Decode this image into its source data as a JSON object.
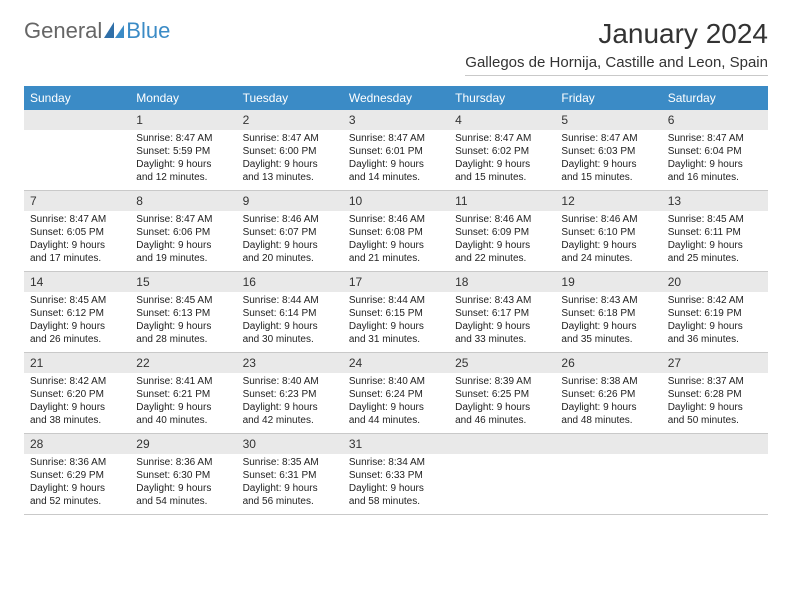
{
  "brand": {
    "part1": "General",
    "part2": "Blue"
  },
  "title": "January 2024",
  "location": "Gallegos de Hornija, Castille and Leon, Spain",
  "colors": {
    "header_bg": "#3b8bc6",
    "header_fg": "#ffffff",
    "daynum_bg": "#e9e9e9",
    "border": "#c9c9c9",
    "brand_gray": "#666666",
    "brand_blue": "#3b8bc6"
  },
  "layout": {
    "columns": 7,
    "rows": 5,
    "first_weekday_offset": 1
  },
  "weekdays": [
    "Sunday",
    "Monday",
    "Tuesday",
    "Wednesday",
    "Thursday",
    "Friday",
    "Saturday"
  ],
  "days": [
    {
      "n": 1,
      "sunrise": "8:47 AM",
      "sunset": "5:59 PM",
      "daylight": "9 hours and 12 minutes."
    },
    {
      "n": 2,
      "sunrise": "8:47 AM",
      "sunset": "6:00 PM",
      "daylight": "9 hours and 13 minutes."
    },
    {
      "n": 3,
      "sunrise": "8:47 AM",
      "sunset": "6:01 PM",
      "daylight": "9 hours and 14 minutes."
    },
    {
      "n": 4,
      "sunrise": "8:47 AM",
      "sunset": "6:02 PM",
      "daylight": "9 hours and 15 minutes."
    },
    {
      "n": 5,
      "sunrise": "8:47 AM",
      "sunset": "6:03 PM",
      "daylight": "9 hours and 15 minutes."
    },
    {
      "n": 6,
      "sunrise": "8:47 AM",
      "sunset": "6:04 PM",
      "daylight": "9 hours and 16 minutes."
    },
    {
      "n": 7,
      "sunrise": "8:47 AM",
      "sunset": "6:05 PM",
      "daylight": "9 hours and 17 minutes."
    },
    {
      "n": 8,
      "sunrise": "8:47 AM",
      "sunset": "6:06 PM",
      "daylight": "9 hours and 19 minutes."
    },
    {
      "n": 9,
      "sunrise": "8:46 AM",
      "sunset": "6:07 PM",
      "daylight": "9 hours and 20 minutes."
    },
    {
      "n": 10,
      "sunrise": "8:46 AM",
      "sunset": "6:08 PM",
      "daylight": "9 hours and 21 minutes."
    },
    {
      "n": 11,
      "sunrise": "8:46 AM",
      "sunset": "6:09 PM",
      "daylight": "9 hours and 22 minutes."
    },
    {
      "n": 12,
      "sunrise": "8:46 AM",
      "sunset": "6:10 PM",
      "daylight": "9 hours and 24 minutes."
    },
    {
      "n": 13,
      "sunrise": "8:45 AM",
      "sunset": "6:11 PM",
      "daylight": "9 hours and 25 minutes."
    },
    {
      "n": 14,
      "sunrise": "8:45 AM",
      "sunset": "6:12 PM",
      "daylight": "9 hours and 26 minutes."
    },
    {
      "n": 15,
      "sunrise": "8:45 AM",
      "sunset": "6:13 PM",
      "daylight": "9 hours and 28 minutes."
    },
    {
      "n": 16,
      "sunrise": "8:44 AM",
      "sunset": "6:14 PM",
      "daylight": "9 hours and 30 minutes."
    },
    {
      "n": 17,
      "sunrise": "8:44 AM",
      "sunset": "6:15 PM",
      "daylight": "9 hours and 31 minutes."
    },
    {
      "n": 18,
      "sunrise": "8:43 AM",
      "sunset": "6:17 PM",
      "daylight": "9 hours and 33 minutes."
    },
    {
      "n": 19,
      "sunrise": "8:43 AM",
      "sunset": "6:18 PM",
      "daylight": "9 hours and 35 minutes."
    },
    {
      "n": 20,
      "sunrise": "8:42 AM",
      "sunset": "6:19 PM",
      "daylight": "9 hours and 36 minutes."
    },
    {
      "n": 21,
      "sunrise": "8:42 AM",
      "sunset": "6:20 PM",
      "daylight": "9 hours and 38 minutes."
    },
    {
      "n": 22,
      "sunrise": "8:41 AM",
      "sunset": "6:21 PM",
      "daylight": "9 hours and 40 minutes."
    },
    {
      "n": 23,
      "sunrise": "8:40 AM",
      "sunset": "6:23 PM",
      "daylight": "9 hours and 42 minutes."
    },
    {
      "n": 24,
      "sunrise": "8:40 AM",
      "sunset": "6:24 PM",
      "daylight": "9 hours and 44 minutes."
    },
    {
      "n": 25,
      "sunrise": "8:39 AM",
      "sunset": "6:25 PM",
      "daylight": "9 hours and 46 minutes."
    },
    {
      "n": 26,
      "sunrise": "8:38 AM",
      "sunset": "6:26 PM",
      "daylight": "9 hours and 48 minutes."
    },
    {
      "n": 27,
      "sunrise": "8:37 AM",
      "sunset": "6:28 PM",
      "daylight": "9 hours and 50 minutes."
    },
    {
      "n": 28,
      "sunrise": "8:36 AM",
      "sunset": "6:29 PM",
      "daylight": "9 hours and 52 minutes."
    },
    {
      "n": 29,
      "sunrise": "8:36 AM",
      "sunset": "6:30 PM",
      "daylight": "9 hours and 54 minutes."
    },
    {
      "n": 30,
      "sunrise": "8:35 AM",
      "sunset": "6:31 PM",
      "daylight": "9 hours and 56 minutes."
    },
    {
      "n": 31,
      "sunrise": "8:34 AM",
      "sunset": "6:33 PM",
      "daylight": "9 hours and 58 minutes."
    }
  ],
  "labels": {
    "sunrise": "Sunrise:",
    "sunset": "Sunset:",
    "daylight": "Daylight:"
  }
}
